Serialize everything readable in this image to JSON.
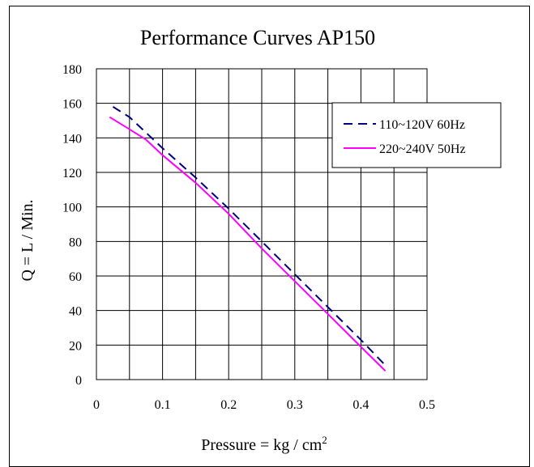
{
  "chart_data": {
    "type": "line",
    "title": "Performance  Curves  AP150",
    "xlabel": "Pressure = kg / cm",
    "xlabel_superscript": "2",
    "ylabel": "Q = L / Min.",
    "xlim": [
      0,
      0.5
    ],
    "ylim": [
      0,
      180
    ],
    "x_ticks": [
      "0",
      "0.1",
      "0.2",
      "0.3",
      "0.4",
      "0.5"
    ],
    "y_ticks": [
      "0",
      "20",
      "40",
      "60",
      "80",
      "100",
      "120",
      "140",
      "160",
      "180"
    ],
    "x_tick_values": [
      0,
      0.1,
      0.2,
      0.3,
      0.4,
      0.5
    ],
    "y_tick_values": [
      0,
      20,
      40,
      60,
      80,
      100,
      120,
      140,
      160,
      180
    ],
    "x_grid_step": 0.05,
    "grid": true,
    "legend_position": "top-right",
    "series": [
      {
        "name": "110~120V 60Hz",
        "color": "#000080",
        "dash": "dashed",
        "x": [
          0.025,
          0.05,
          0.1,
          0.15,
          0.2,
          0.25,
          0.3,
          0.35,
          0.4,
          0.435
        ],
        "y": [
          158,
          152,
          134,
          117,
          99,
          80,
          61,
          42,
          23,
          9
        ]
      },
      {
        "name": "220~240V 50Hz",
        "color": "#ff00ff",
        "dash": "solid",
        "x": [
          0.02,
          0.05,
          0.075,
          0.1,
          0.15,
          0.2,
          0.25,
          0.3,
          0.35,
          0.4,
          0.437
        ],
        "y": [
          152,
          145,
          139,
          130,
          114,
          96,
          76,
          57,
          38,
          19,
          5
        ]
      }
    ]
  }
}
